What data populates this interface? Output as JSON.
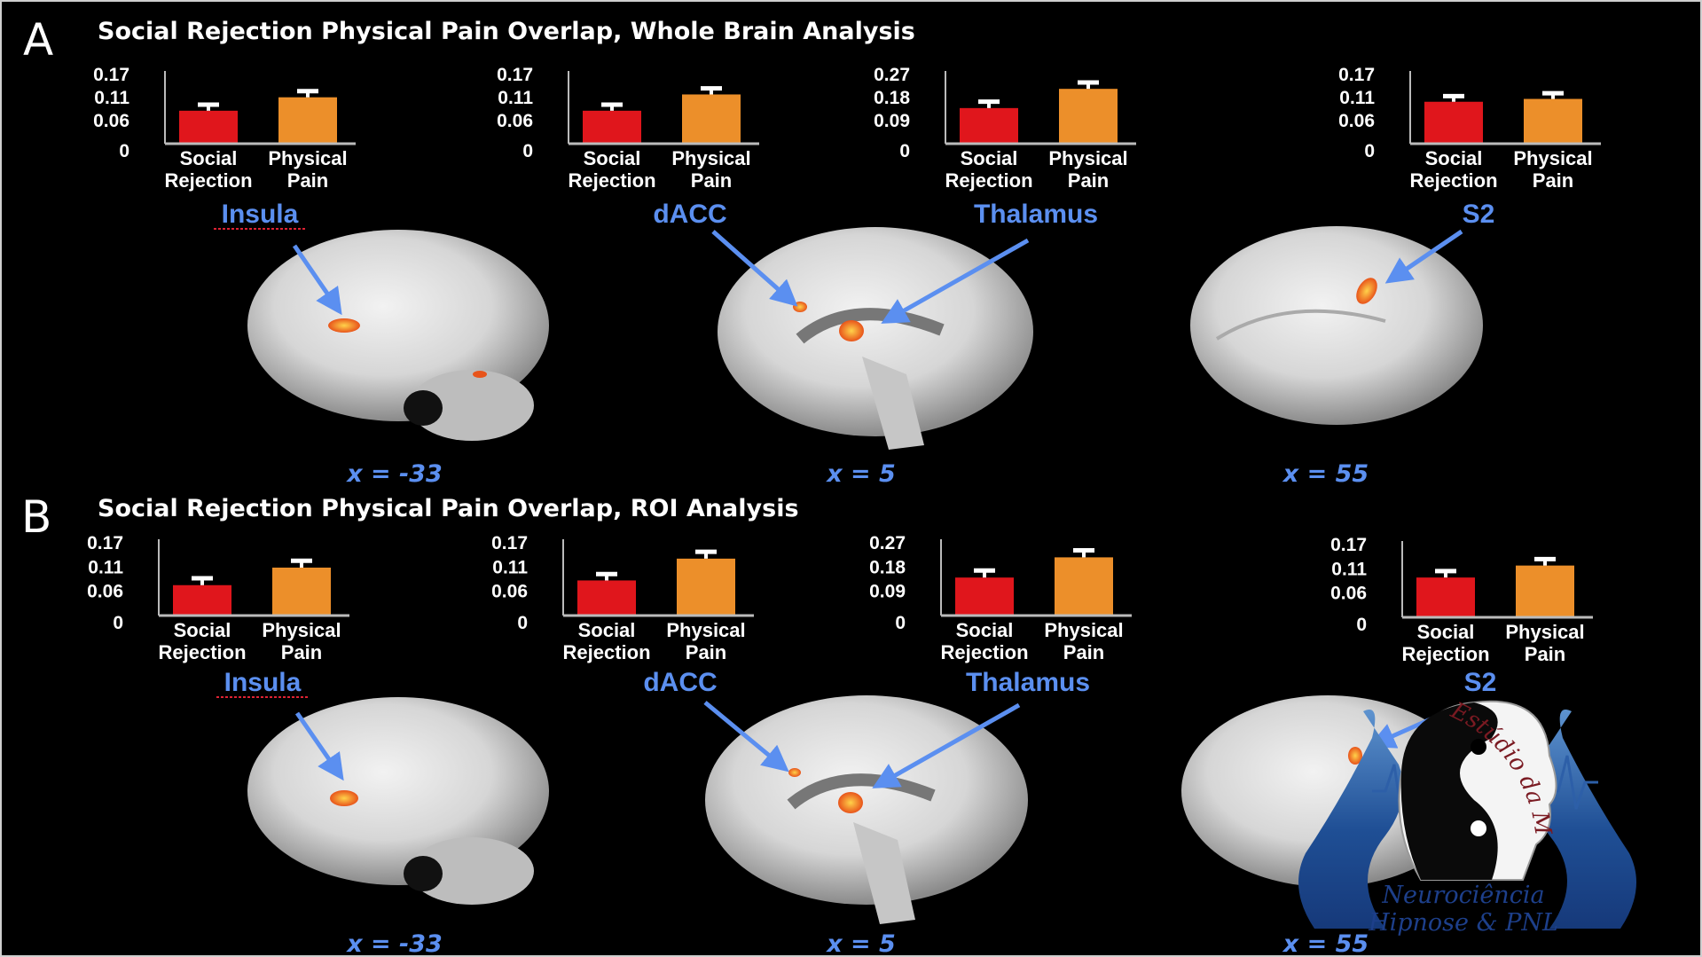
{
  "colors": {
    "social_rejection": "#e0161c",
    "physical_pain": "#ec8f2a",
    "region_label": "#5b8ff0",
    "background": "#000000",
    "activation": "#f06a1a"
  },
  "panels": [
    {
      "letter": "A",
      "title": "Social Rejection Physical Pain Overlap, Whole Brain Analysis",
      "coords": [
        "x = -33",
        "x = 5",
        "x = 55"
      ]
    },
    {
      "letter": "B",
      "title": "Social Rejection Physical Pain Overlap, ROI Analysis",
      "coords": [
        "x = -33",
        "x = 5",
        "x = 55"
      ]
    }
  ],
  "chart_data": [
    {
      "type": "bar",
      "panel": "A",
      "region": "Insula",
      "categories": [
        "Social Rejection",
        "Physical Pain"
      ],
      "values": [
        0.081,
        0.114
      ],
      "error_upper": [
        0.096,
        0.129
      ],
      "yticks": [
        "0",
        "0.06",
        "0.11",
        "0.17"
      ],
      "ylim": [
        0,
        0.17
      ]
    },
    {
      "type": "bar",
      "panel": "A",
      "region": "dACC",
      "categories": [
        "Social Rejection",
        "Physical Pain"
      ],
      "values": [
        0.081,
        0.121
      ],
      "error_upper": [
        0.096,
        0.136
      ],
      "yticks": [
        "0",
        "0.06",
        "0.11",
        "0.17"
      ],
      "ylim": [
        0,
        0.17
      ]
    },
    {
      "type": "bar",
      "panel": "A",
      "region": "Thalamus",
      "categories": [
        "Social Rejection",
        "Physical Pain"
      ],
      "values": [
        0.139,
        0.214
      ],
      "error_upper": [
        0.164,
        0.239
      ],
      "yticks": [
        "0",
        "0.09",
        "0.18",
        "0.27"
      ],
      "ylim": [
        0,
        0.27
      ]
    },
    {
      "type": "bar",
      "panel": "A",
      "region": "S2",
      "categories": [
        "Social Rejection",
        "Physical Pain"
      ],
      "values": [
        0.103,
        0.11
      ],
      "error_upper": [
        0.117,
        0.124
      ],
      "yticks": [
        "0",
        "0.06",
        "0.11",
        "0.17"
      ],
      "ylim": [
        0,
        0.17
      ]
    },
    {
      "type": "bar",
      "panel": "B",
      "region": "Insula",
      "categories": [
        "Social Rejection",
        "Physical Pain"
      ],
      "values": [
        0.071,
        0.112
      ],
      "error_upper": [
        0.087,
        0.128
      ],
      "yticks": [
        "0",
        "0.06",
        "0.11",
        "0.17"
      ],
      "ylim": [
        0,
        0.17
      ]
    },
    {
      "type": "bar",
      "panel": "B",
      "region": "dACC",
      "categories": [
        "Social Rejection",
        "Physical Pain"
      ],
      "values": [
        0.082,
        0.133
      ],
      "error_upper": [
        0.097,
        0.149
      ],
      "yticks": [
        "0",
        "0.06",
        "0.11",
        "0.17"
      ],
      "ylim": [
        0,
        0.17
      ]
    },
    {
      "type": "bar",
      "panel": "B",
      "region": "Thalamus",
      "categories": [
        "Social Rejection",
        "Physical Pain"
      ],
      "values": [
        0.141,
        0.216
      ],
      "error_upper": [
        0.167,
        0.242
      ],
      "yticks": [
        "0",
        "0.09",
        "0.18",
        "0.27"
      ],
      "ylim": [
        0,
        0.27
      ]
    },
    {
      "type": "bar",
      "panel": "B",
      "region": "S2",
      "categories": [
        "Social Rejection",
        "Physical Pain"
      ],
      "values": [
        0.093,
        0.121
      ],
      "error_upper": [
        0.108,
        0.136
      ],
      "yticks": [
        "0",
        "0.06",
        "0.11",
        "0.17"
      ],
      "ylim": [
        0,
        0.17
      ]
    }
  ],
  "logo": {
    "arc_text": "Estúdio da Mente",
    "line1": "Neurociência",
    "line2": "Hipnose & PNL"
  }
}
